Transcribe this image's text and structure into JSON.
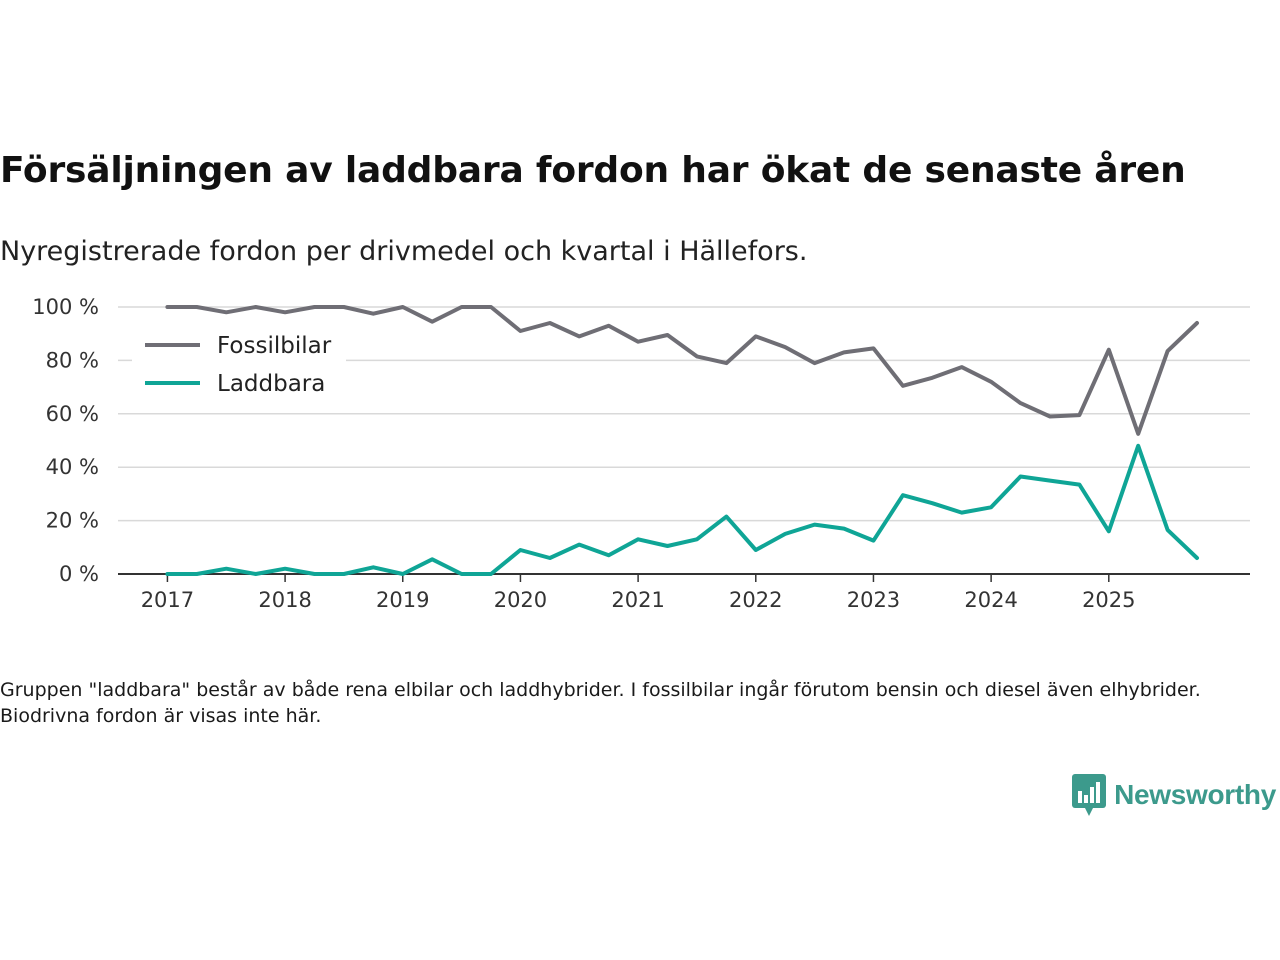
{
  "header": {
    "title": "Försäljningen av laddbara fordon har ökat de senaste åren",
    "subtitle": "Nyregistrerade fordon per drivmedel och kvartal i Hällefors."
  },
  "footer": {
    "note": "Gruppen \"laddbara\" består av både rena elbilar och laddhybrider. I fossilbilar ingår förutom bensin och diesel även elhybrider. Biodrivna fordon är visas inte här.",
    "brand": "Newsworthy",
    "brand_color": "#3c9a8c"
  },
  "chart_data": {
    "type": "line",
    "title": "Försäljningen av laddbara fordon har ökat de senaste åren",
    "subtitle": "Nyregistrerade fordon per drivmedel och kvartal i Hällefors.",
    "xlabel": "",
    "ylabel": "",
    "x": [
      2017.0,
      2017.25,
      2017.5,
      2017.75,
      2018.0,
      2018.25,
      2018.5,
      2018.75,
      2019.0,
      2019.25,
      2019.5,
      2019.75,
      2020.0,
      2020.25,
      2020.5,
      2020.75,
      2021.0,
      2021.25,
      2021.5,
      2021.75,
      2022.0,
      2022.25,
      2022.5,
      2022.75,
      2023.0,
      2023.25,
      2023.5,
      2023.75,
      2024.0,
      2024.25,
      2024.5,
      2024.75,
      2025.0,
      2025.25,
      2025.5,
      2025.75
    ],
    "x_ticks": [
      2017,
      2018,
      2019,
      2020,
      2021,
      2022,
      2023,
      2024,
      2025
    ],
    "x_tick_labels": [
      "2017",
      "2018",
      "2019",
      "2020",
      "2021",
      "2022",
      "2023",
      "2024",
      "2025"
    ],
    "xlim": [
      2016.58,
      2026.2
    ],
    "y_ticks": [
      0,
      20,
      40,
      60,
      80,
      100
    ],
    "y_tick_labels": [
      "0 %",
      "20 %",
      "40 %",
      "60 %",
      "80 %",
      "100 %"
    ],
    "ylim": [
      0,
      100
    ],
    "grid": true,
    "legend_position": "top-left",
    "series": [
      {
        "name": "Fossilbilar",
        "color": "#6f6e75",
        "values": [
          100,
          100,
          98,
          100,
          98,
          100,
          100,
          97.5,
          100,
          94.5,
          100,
          100,
          91,
          94,
          89,
          93,
          87,
          89.5,
          81.5,
          79,
          89,
          85,
          79,
          83,
          84.5,
          70.5,
          73.5,
          77.5,
          72,
          64,
          59,
          59.5,
          84,
          52.5,
          83.5,
          94
        ]
      },
      {
        "name": "Laddbara",
        "color": "#0fa596",
        "values": [
          0,
          0,
          2,
          0,
          2,
          0,
          0,
          2.5,
          0,
          5.5,
          0,
          0,
          9,
          6,
          11,
          7,
          13,
          10.5,
          13,
          21.5,
          9,
          15,
          18.5,
          17,
          12.5,
          29.5,
          26.5,
          23,
          25,
          36.5,
          35,
          33.5,
          16,
          48,
          16.5,
          6
        ]
      }
    ]
  }
}
